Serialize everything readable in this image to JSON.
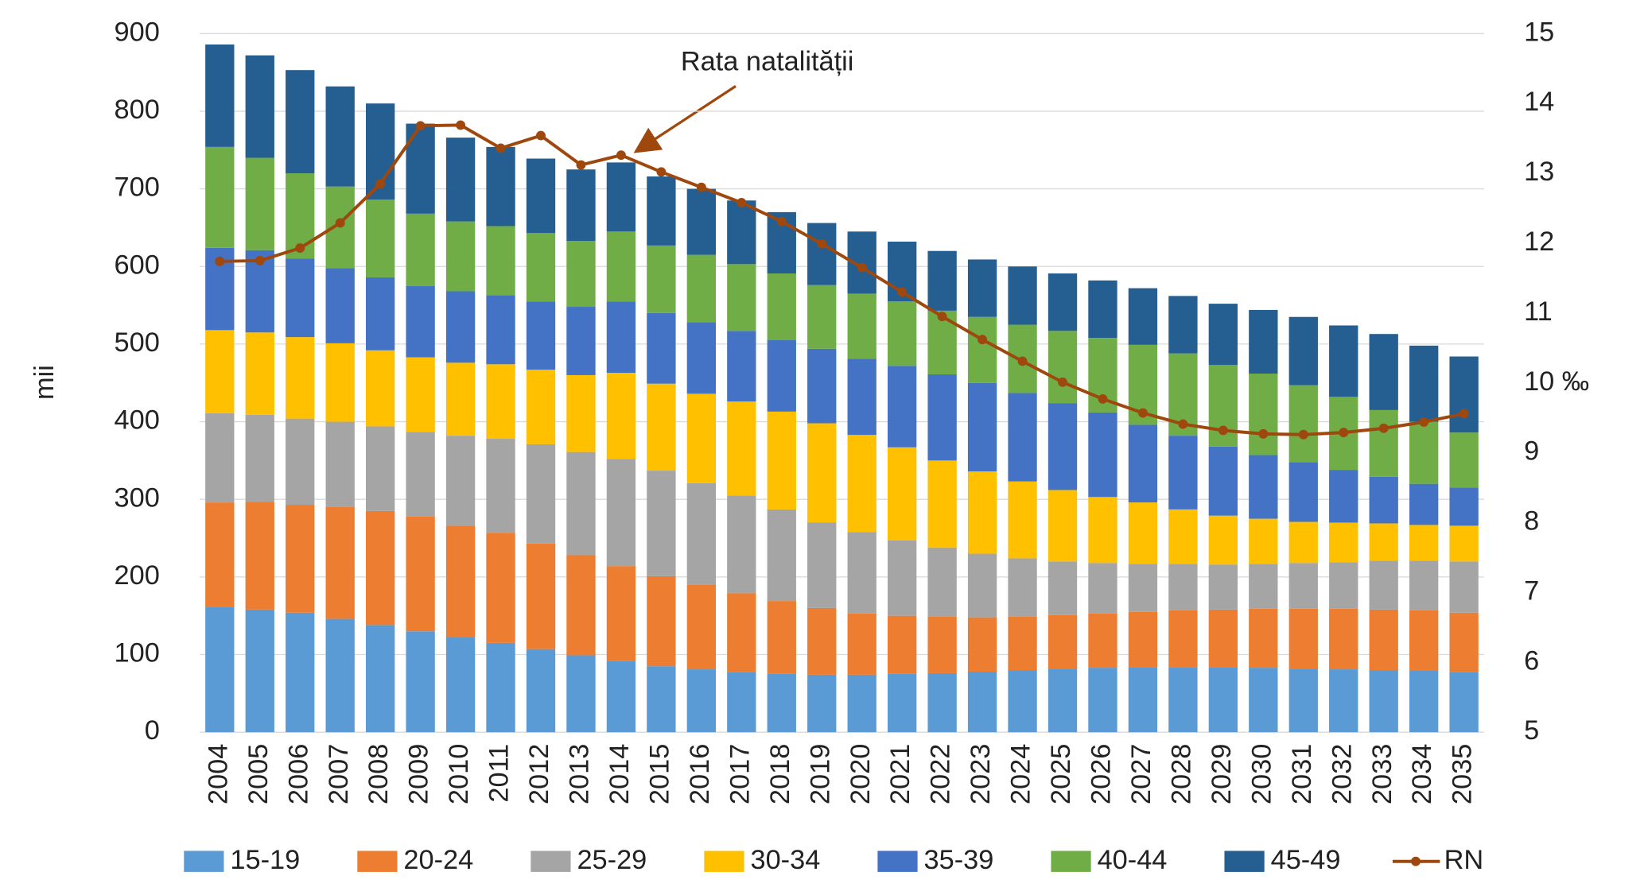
{
  "chart_data": {
    "type": "bar",
    "stacked": true,
    "y_label": "mii",
    "annotation": "Rata natalității",
    "categories": [
      "2004",
      "2005",
      "2006",
      "2007",
      "2008",
      "2009",
      "2010",
      "2011",
      "2012",
      "2013",
      "2014",
      "2015",
      "2016",
      "2017",
      "2018",
      "2019",
      "2020",
      "2021",
      "2022",
      "2023",
      "2024",
      "2025",
      "2026",
      "2027",
      "2028",
      "2029",
      "2030",
      "2031",
      "2032",
      "2033",
      "2034",
      "2035"
    ],
    "series": [
      {
        "name": "15-19",
        "color": "#5b9bd5",
        "values": [
          161,
          158,
          154,
          146,
          138,
          130,
          122,
          115,
          107,
          99,
          92,
          85,
          81,
          77,
          75,
          74,
          74,
          75,
          76,
          78,
          80,
          82,
          83,
          84,
          84,
          84,
          83,
          82,
          81,
          80,
          79,
          77
        ]
      },
      {
        "name": "20-24",
        "color": "#ed7d31",
        "values": [
          135,
          139,
          139,
          144,
          147,
          148,
          144,
          142,
          136,
          129,
          122,
          116,
          109,
          102,
          94,
          86,
          79,
          75,
          73,
          70,
          69,
          69,
          70,
          71,
          73,
          74,
          76,
          77,
          78,
          78,
          78,
          77
        ]
      },
      {
        "name": "25-29",
        "color": "#a5a5a5",
        "values": [
          115,
          112,
          111,
          110,
          109,
          109,
          116,
          121,
          128,
          133,
          138,
          136,
          131,
          126,
          118,
          110,
          105,
          97,
          89,
          82,
          75,
          69,
          65,
          62,
          60,
          58,
          58,
          59,
          60,
          63,
          64,
          66
        ]
      },
      {
        "name": "30-34",
        "color": "#ffc000",
        "values": [
          107,
          106,
          105,
          101,
          98,
          96,
          94,
          96,
          96,
          99,
          111,
          112,
          115,
          121,
          126,
          128,
          125,
          120,
          112,
          106,
          99,
          92,
          85,
          79,
          70,
          63,
          58,
          53,
          51,
          48,
          46,
          46
        ]
      },
      {
        "name": "35-39",
        "color": "#4472c4",
        "values": [
          106,
          106,
          101,
          97,
          94,
          92,
          92,
          89,
          88,
          88,
          92,
          91,
          92,
          91,
          92,
          96,
          98,
          105,
          111,
          114,
          114,
          112,
          109,
          100,
          95,
          89,
          82,
          77,
          68,
          60,
          53,
          49
        ]
      },
      {
        "name": "40-44",
        "color": "#70ad47",
        "values": [
          130,
          119,
          110,
          105,
          100,
          93,
          90,
          89,
          88,
          85,
          90,
          87,
          87,
          86,
          86,
          82,
          84,
          83,
          82,
          85,
          88,
          93,
          96,
          103,
          106,
          105,
          105,
          99,
          94,
          86,
          80,
          71
        ]
      },
      {
        "name": "45-49",
        "color": "#255e91",
        "values": [
          132,
          132,
          133,
          129,
          124,
          116,
          108,
          102,
          96,
          92,
          89,
          89,
          85,
          82,
          79,
          80,
          80,
          77,
          77,
          74,
          75,
          74,
          74,
          73,
          74,
          79,
          82,
          88,
          92,
          98,
          98,
          98
        ]
      },
      {
        "name": "RN",
        "color": "#9e480e",
        "type": "line",
        "axis": "y2",
        "values": [
          11.74,
          11.75,
          11.93,
          12.29,
          12.85,
          13.68,
          13.69,
          13.36,
          13.54,
          13.12,
          13.26,
          13.02,
          12.8,
          12.58,
          12.31,
          11.99,
          11.65,
          11.3,
          10.95,
          10.62,
          10.31,
          10.01,
          9.77,
          9.57,
          9.41,
          9.32,
          9.27,
          9.26,
          9.29,
          9.35,
          9.44,
          9.56
        ]
      }
    ],
    "ylim": [
      0,
      900
    ],
    "yticks": [
      0,
      100,
      200,
      300,
      400,
      500,
      600,
      700,
      800,
      900
    ],
    "y2lim": [
      5,
      15
    ],
    "y2ticks": [
      5,
      6,
      7,
      8,
      9,
      {
        "value": 10,
        "label": "10 ‰"
      },
      11,
      12,
      13,
      14,
      15
    ],
    "grid": true,
    "legend": "bottom"
  }
}
